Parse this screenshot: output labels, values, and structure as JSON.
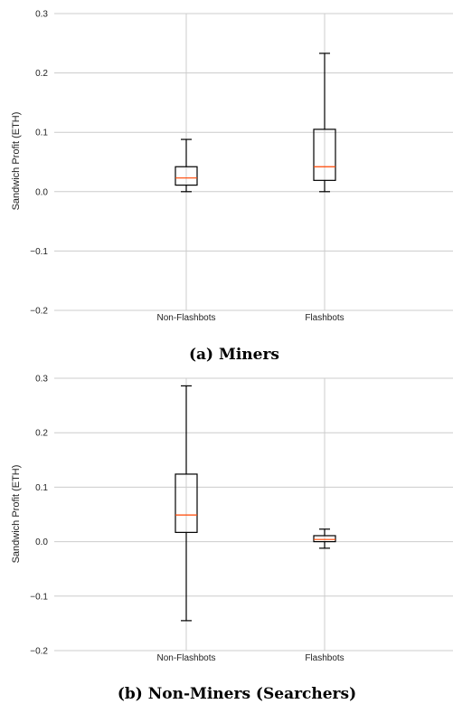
{
  "chart_data": [
    {
      "type": "box",
      "caption": "(a) Miners",
      "ylabel": "Sandwich Profit (ETH)",
      "xlabel": "",
      "ylim": [
        -0.2,
        0.3
      ],
      "yticks": [
        "0.3",
        "0.2",
        "0.1",
        "0.0",
        "−0.1",
        "−0.2"
      ],
      "ytick_values": [
        0.3,
        0.2,
        0.1,
        0.0,
        -0.1,
        -0.2
      ],
      "grid": true,
      "categories": [
        "Non-Flashbots",
        "Flashbots"
      ],
      "boxes": [
        {
          "category": "Non-Flashbots",
          "whisker_low": 0.0,
          "q1": 0.011,
          "median": 0.023,
          "q3": 0.042,
          "whisker_high": 0.088
        },
        {
          "category": "Flashbots",
          "whisker_low": 0.0,
          "q1": 0.019,
          "median": 0.042,
          "q3": 0.105,
          "whisker_high": 0.233
        }
      ]
    },
    {
      "type": "box",
      "caption": "(b) Non-Miners (Searchers)",
      "ylabel": "Sandwich Profit (ETH)",
      "xlabel": "",
      "ylim": [
        -0.2,
        0.3
      ],
      "yticks": [
        "0.3",
        "0.2",
        "0.1",
        "0.0",
        "−0.1",
        "−0.2"
      ],
      "ytick_values": [
        0.3,
        0.2,
        0.1,
        0.0,
        -0.1,
        -0.2
      ],
      "grid": true,
      "categories": [
        "Non-Flashbots",
        "Flashbots"
      ],
      "boxes": [
        {
          "category": "Non-Flashbots",
          "whisker_low": -0.145,
          "q1": 0.017,
          "median": 0.049,
          "q3": 0.124,
          "whisker_high": 0.286
        },
        {
          "category": "Flashbots",
          "whisker_low": -0.012,
          "q1": 0.0,
          "median": 0.004,
          "q3": 0.011,
          "whisker_high": 0.023
        }
      ]
    }
  ],
  "colors": {
    "box": "#000000",
    "median": "#ff4500",
    "grid": "#cccccc"
  }
}
